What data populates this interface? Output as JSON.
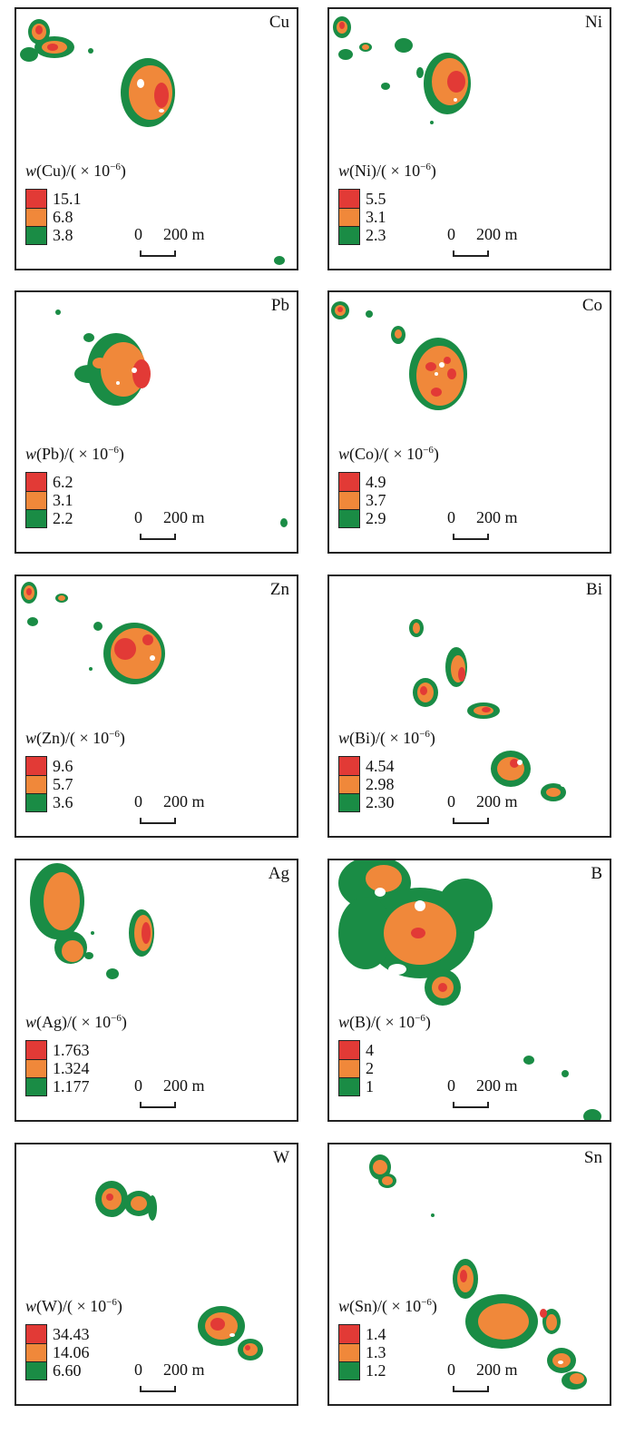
{
  "colors": {
    "high": "#e23a36",
    "mid": "#f0883a",
    "low": "#1a8c45"
  },
  "unit": "/( × 10",
  "unit_exp": "−6",
  "unit_close": ")",
  "scale": {
    "zero": "0",
    "distance": "200 m"
  },
  "panels": [
    {
      "element": "Cu",
      "symbol": "w",
      "levels": [
        "15.1",
        "6.8",
        "3.8"
      ]
    },
    {
      "element": "Ni",
      "symbol": "w",
      "levels": [
        "5.5",
        "3.1",
        "2.3"
      ]
    },
    {
      "element": "Pb",
      "symbol": "w",
      "levels": [
        "6.2",
        "3.1",
        "2.2"
      ]
    },
    {
      "element": "Co",
      "symbol": "w",
      "levels": [
        "4.9",
        "3.7",
        "2.9"
      ]
    },
    {
      "element": "Zn",
      "symbol": "w",
      "levels": [
        "9.6",
        "5.7",
        "3.6"
      ]
    },
    {
      "element": "Bi",
      "symbol": "w",
      "levels": [
        "4.54",
        "2.98",
        "2.30"
      ]
    },
    {
      "element": "Ag",
      "symbol": "w",
      "levels": [
        "1.763",
        "1.324",
        "1.177"
      ]
    },
    {
      "element": "B",
      "symbol": "w",
      "levels": [
        "4",
        "2",
        "1"
      ]
    },
    {
      "element": "W",
      "symbol": "w",
      "levels": [
        "34.43",
        "14.06",
        "6.60"
      ]
    },
    {
      "element": "Sn",
      "symbol": "w",
      "levels": [
        "1.4",
        "1.3",
        "1.2"
      ]
    }
  ]
}
